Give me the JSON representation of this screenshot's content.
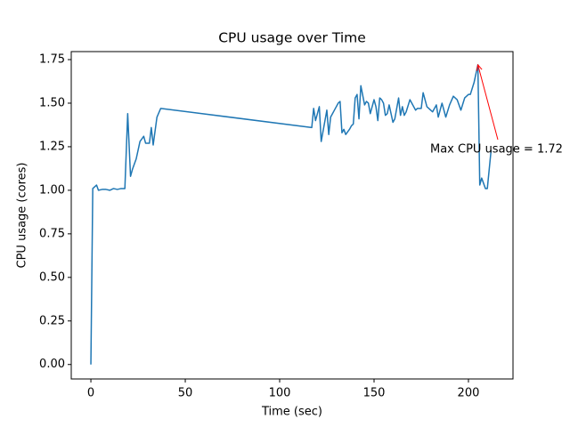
{
  "chart_data": {
    "type": "line",
    "title": "CPU usage over Time",
    "x_label": "Time (sec)",
    "y_label": "CPU usage (cores)",
    "x": [
      0,
      1,
      3,
      4,
      6,
      8,
      10,
      12,
      14,
      16,
      18,
      19.5,
      21,
      22,
      24,
      26,
      28,
      29,
      31,
      32,
      33,
      35,
      37,
      117,
      118,
      119,
      121,
      122,
      125,
      126,
      127,
      129,
      131,
      132,
      133,
      134,
      135,
      137,
      138,
      139,
      140,
      141,
      142,
      143,
      145,
      146,
      147,
      148,
      150,
      151,
      152,
      153,
      154,
      155,
      156,
      157,
      158,
      160,
      161,
      163,
      164,
      165,
      166,
      167,
      169,
      170,
      172,
      173,
      175,
      176,
      178,
      180,
      181,
      183,
      184,
      186,
      188,
      190,
      192,
      194,
      196,
      198,
      200,
      201,
      203,
      205,
      206,
      207,
      209,
      210,
      212
    ],
    "series": [
      {
        "name": "CPU usage",
        "color": "#1f77b4",
        "values": [
          0,
          1.01,
          1.03,
          1.0,
          1.005,
          1.005,
          1.0,
          1.01,
          1.005,
          1.01,
          1.01,
          1.44,
          1.08,
          1.12,
          1.18,
          1.28,
          1.31,
          1.27,
          1.27,
          1.36,
          1.26,
          1.42,
          1.47,
          1.36,
          1.47,
          1.4,
          1.48,
          1.28,
          1.46,
          1.32,
          1.42,
          1.46,
          1.5,
          1.51,
          1.33,
          1.35,
          1.32,
          1.35,
          1.37,
          1.38,
          1.53,
          1.55,
          1.41,
          1.6,
          1.49,
          1.51,
          1.5,
          1.44,
          1.52,
          1.48,
          1.4,
          1.53,
          1.52,
          1.5,
          1.43,
          1.44,
          1.49,
          1.39,
          1.41,
          1.53,
          1.43,
          1.48,
          1.43,
          1.45,
          1.52,
          1.5,
          1.46,
          1.47,
          1.47,
          1.56,
          1.48,
          1.46,
          1.45,
          1.49,
          1.42,
          1.5,
          1.42,
          1.49,
          1.54,
          1.52,
          1.46,
          1.53,
          1.55,
          1.55,
          1.62,
          1.72,
          1.03,
          1.07,
          1.01,
          1.01,
          1.23
        ]
      }
    ],
    "xlim": [
      -10.4,
      223.6
    ],
    "ylim": [
      -0.083,
      1.796
    ],
    "xticks": [
      0,
      50,
      100,
      150,
      200
    ],
    "yticks": [
      {
        "value": 0,
        "label": "0.00"
      },
      0.25,
      {
        "value": 0.5,
        "label": "0.50"
      },
      0.75,
      {
        "value": 1,
        "label": "1.00"
      },
      1.25,
      {
        "value": 1.5,
        "label": "1.50"
      },
      1.75
    ],
    "annotation": {
      "text": "Max CPU usage = 1.72",
      "color": "#ff0000"
    }
  }
}
